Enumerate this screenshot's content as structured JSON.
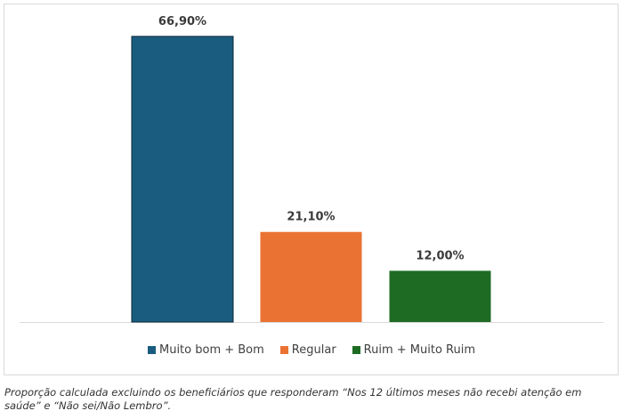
{
  "chart_data": {
    "type": "bar",
    "categories": [
      "Muito bom + Bom",
      "Regular",
      "Ruim + Muito Ruim"
    ],
    "values": [
      66.9,
      21.1,
      12.0
    ],
    "value_labels": [
      "66,90%",
      "21,10%",
      "12,00%"
    ],
    "colors": [
      "#1a5c80",
      "#ea7333",
      "#1e6b24"
    ],
    "ylim": [
      0,
      75
    ],
    "grid": false,
    "legend_placement": "bottom",
    "title": "",
    "xlabel": "",
    "ylabel": ""
  },
  "legend": [
    {
      "label": "Muito bom + Bom",
      "color": "#1a5c80"
    },
    {
      "label": "Regular",
      "color": "#ea7333"
    },
    {
      "label": "Ruim + Muito Ruim",
      "color": "#1e6b24"
    }
  ],
  "caption": "Proporção calculada excluindo os beneficiários que responderam “Nos 12 últimos meses não recebi atenção em saúde” e “Não sei/Não Lembro”."
}
